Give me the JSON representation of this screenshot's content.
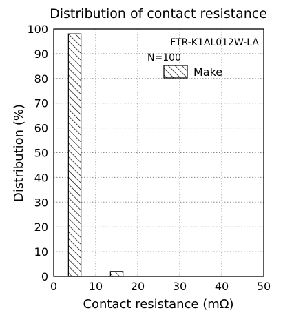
{
  "chart_data": {
    "type": "bar",
    "title": "Distribution of contact resistance",
    "xlabel": "Contact resistance (mΩ)",
    "ylabel": "Distribution (%)",
    "xlim": [
      0,
      50
    ],
    "ylim": [
      0,
      100
    ],
    "xticks": [
      0,
      10,
      20,
      30,
      40,
      50
    ],
    "yticks": [
      0,
      10,
      20,
      30,
      40,
      50,
      60,
      70,
      80,
      90,
      100
    ],
    "grid": true,
    "grid_style": "dotted",
    "bins": [
      {
        "from": 3.5,
        "to": 6.5,
        "value": 98
      },
      {
        "from": 13.5,
        "to": 16.5,
        "value": 2
      }
    ],
    "series": [
      {
        "name": "Make",
        "fill": "hatched"
      }
    ],
    "annotations": [
      "FTR-K1AL012W-LA",
      "N=100"
    ],
    "legend_position": "top-right"
  },
  "colors": {
    "line": "#000000",
    "grid": "#8a8a8a",
    "background": "#ffffff"
  }
}
